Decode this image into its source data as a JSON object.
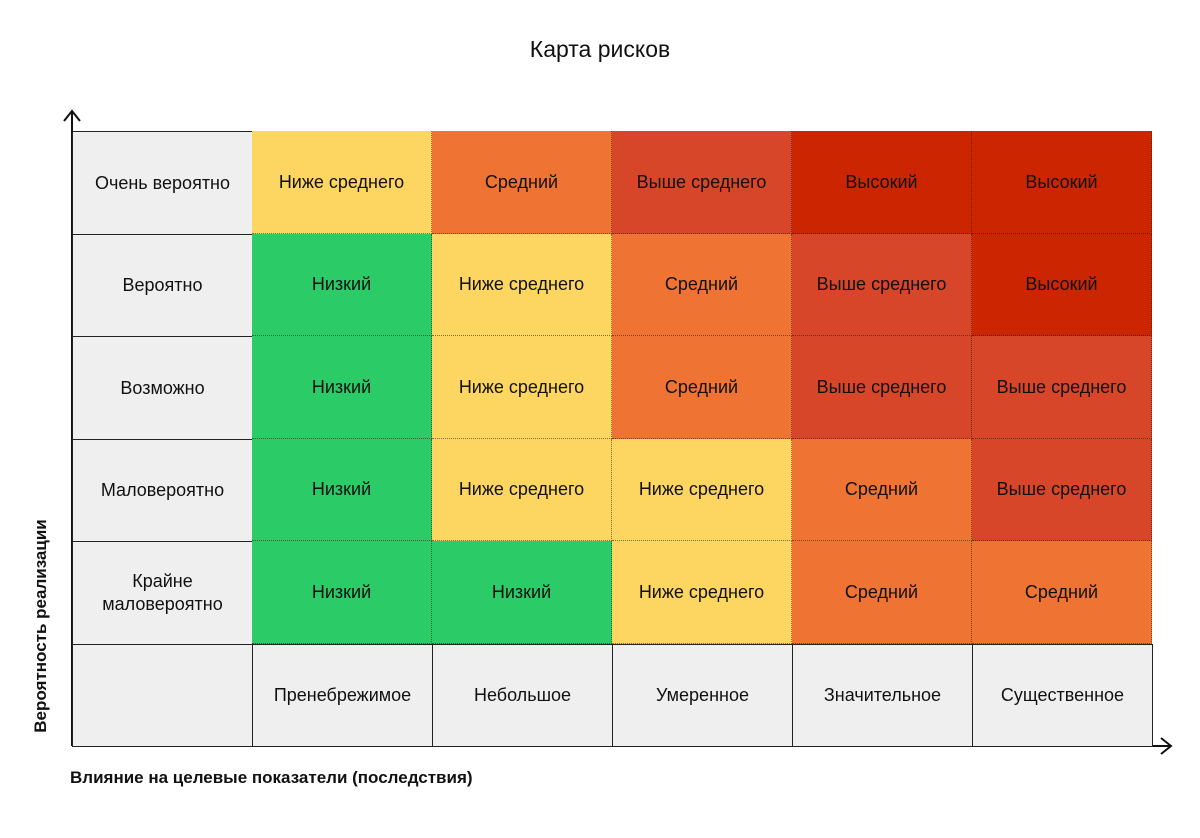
{
  "title": "Карта рисков",
  "y_axis_label": "Вероятность реализации",
  "x_axis_label": "Влияние на целевые показатели (последствия)",
  "colors": {
    "Низкий": "#2bcb68",
    "Ниже среднего": "#fdd661",
    "Средний": "#ef7433",
    "Выше среднего": "#d74628",
    "Высокий": "#cb2502"
  },
  "rows": [
    {
      "label": "Очень вероятно",
      "cells": [
        "Ниже среднего",
        "Средний",
        "Выше среднего",
        "Высокий",
        "Высокий"
      ]
    },
    {
      "label": "Вероятно",
      "cells": [
        "Низкий",
        "Ниже среднего",
        "Средний",
        "Выше среднего",
        "Высокий"
      ]
    },
    {
      "label": "Возможно",
      "cells": [
        "Низкий",
        "Ниже среднего",
        "Средний",
        "Выше среднего",
        "Выше среднего"
      ]
    },
    {
      "label": "Маловероятно",
      "cells": [
        "Низкий",
        "Ниже среднего",
        "Ниже среднего",
        "Средний",
        "Выше среднего"
      ]
    },
    {
      "label": "Крайне маловероятно",
      "cells": [
        "Низкий",
        "Низкий",
        "Ниже среднего",
        "Средний",
        "Средний"
      ]
    }
  ],
  "columns": [
    "Пренебрежимое",
    "Небольшое",
    "Умеренное",
    "Значительное",
    "Существенное"
  ],
  "corner": ""
}
